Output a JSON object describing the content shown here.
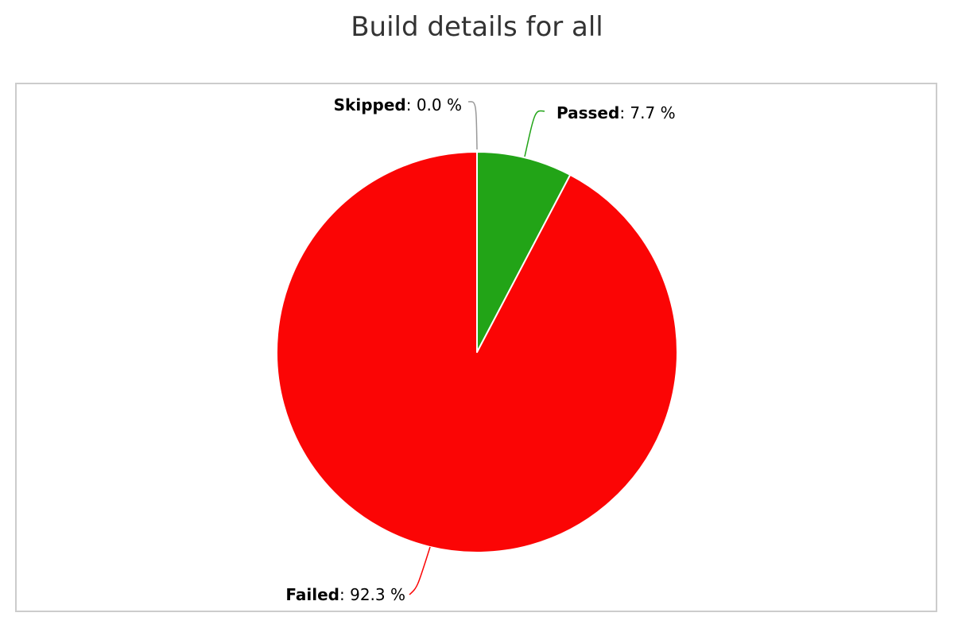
{
  "chart_data": {
    "type": "pie",
    "title": "Build details for all",
    "slices": [
      {
        "name": "Passed",
        "value": 7.7,
        "display": "7.7 %",
        "color": "#22a417"
      },
      {
        "name": "Failed",
        "value": 92.3,
        "display": "92.3 %",
        "color": "#fb0505"
      },
      {
        "name": "Skipped",
        "value": 0.0,
        "display": "0.0 %",
        "color": "#999999"
      }
    ],
    "legend": "none",
    "label_separator": ": "
  }
}
